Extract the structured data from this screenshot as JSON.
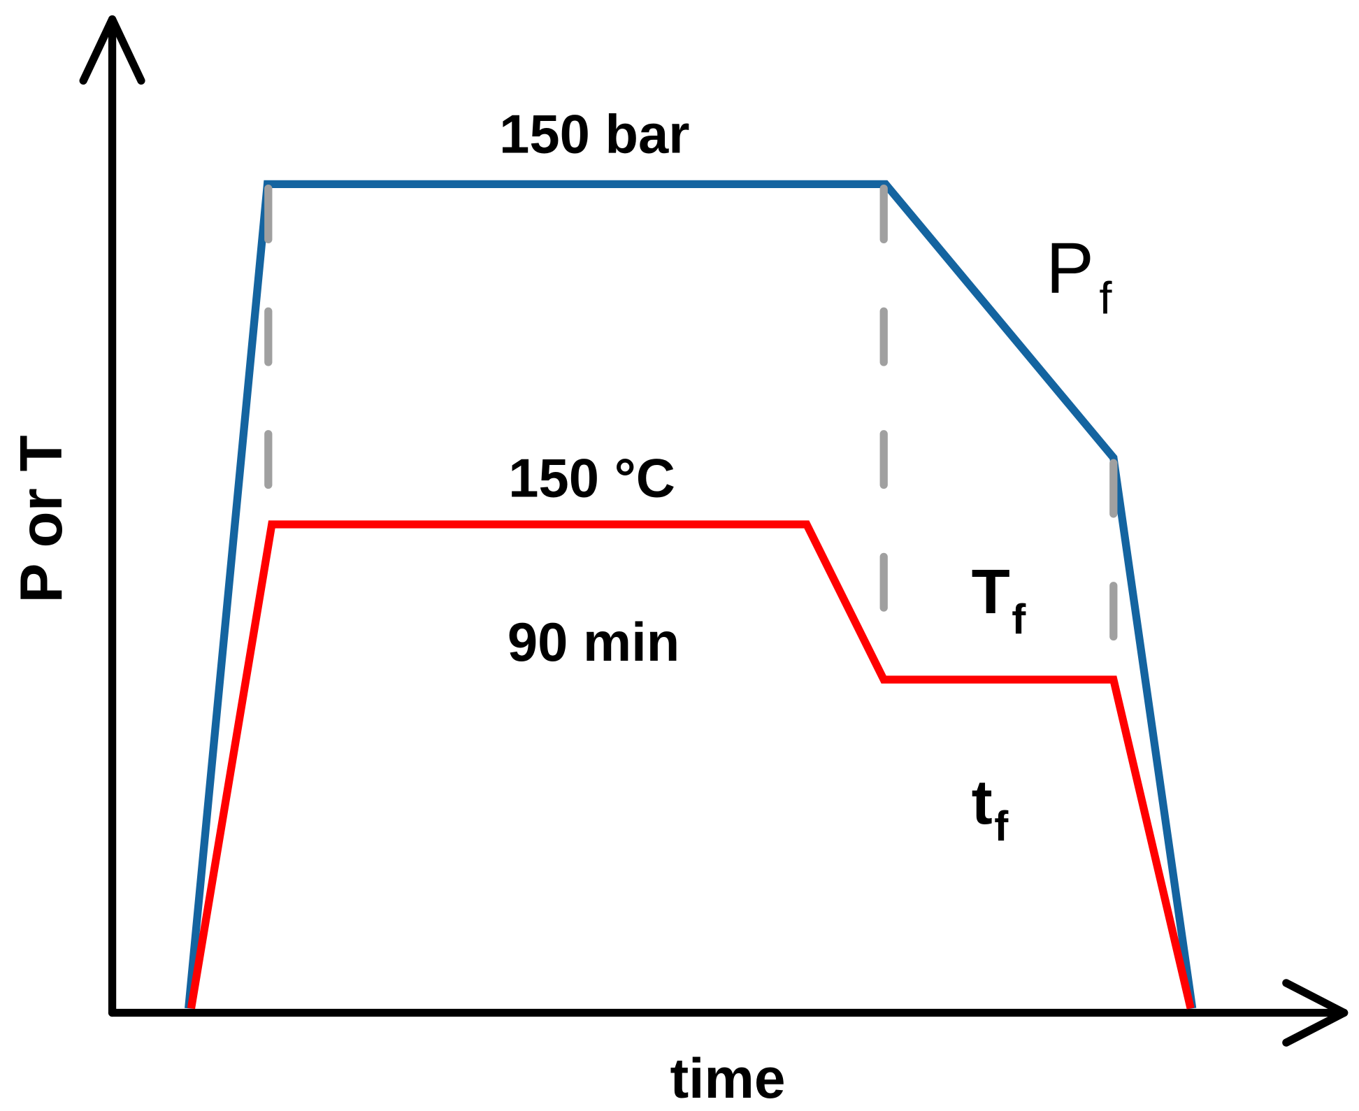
{
  "axes": {
    "y_label": "P or T",
    "x_label": "time"
  },
  "labels": {
    "pressure": "150 bar",
    "temperature": "150 °C",
    "duration": "90 min",
    "final_pressure": {
      "base": "P",
      "sub": "f"
    },
    "final_temperature": {
      "base": "T",
      "sub": "f"
    },
    "final_time": {
      "base": "t",
      "sub": "f"
    }
  }
}
